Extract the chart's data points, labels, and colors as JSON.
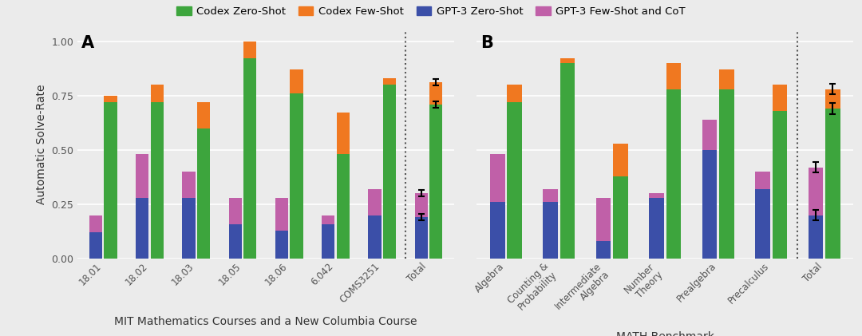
{
  "panel_A": {
    "categories": [
      "18.01",
      "18.02",
      "18.03",
      "18.05",
      "18.06",
      "6.042",
      "COMS3251",
      "Total"
    ],
    "codex_zeroshot": [
      0.72,
      0.72,
      0.6,
      0.92,
      0.76,
      0.48,
      0.8,
      0.71
    ],
    "codex_fewshot": [
      0.75,
      0.8,
      0.72,
      1.0,
      0.87,
      0.67,
      0.83,
      0.81
    ],
    "gpt3_zeroshot": [
      0.12,
      0.28,
      0.28,
      0.16,
      0.13,
      0.16,
      0.2,
      0.19
    ],
    "gpt3_cot": [
      0.2,
      0.48,
      0.4,
      0.28,
      0.28,
      0.2,
      0.32,
      0.3
    ],
    "total_codex_zs_err": [
      0.015,
      0.015
    ],
    "total_codex_fs_err": [
      0.015,
      0.015
    ],
    "total_gpt_zs_err": [
      0.015,
      0.015
    ],
    "total_gpt_cot_err": [
      0.015,
      0.015
    ],
    "xlabel": "MIT Mathematics Courses and a New Columbia Course",
    "panel_label": "A"
  },
  "panel_B": {
    "categories": [
      "Algebra",
      "Counting &\nProbability",
      "Intermediate\nAlgebra",
      "Number\nTheory",
      "Prealgebra",
      "Precalculus",
      "Total"
    ],
    "codex_zeroshot": [
      0.72,
      0.9,
      0.38,
      0.78,
      0.78,
      0.68,
      0.69
    ],
    "codex_fewshot": [
      0.8,
      0.92,
      0.53,
      0.9,
      0.87,
      0.8,
      0.78
    ],
    "gpt3_zeroshot": [
      0.26,
      0.26,
      0.08,
      0.28,
      0.5,
      0.32,
      0.2
    ],
    "gpt3_cot": [
      0.48,
      0.32,
      0.28,
      0.3,
      0.64,
      0.4,
      0.42
    ],
    "total_codex_zs_err": [
      0.025,
      0.025
    ],
    "total_codex_fs_err": [
      0.025,
      0.025
    ],
    "total_gpt_zs_err": [
      0.025,
      0.025
    ],
    "total_gpt_cot_err": [
      0.025,
      0.025
    ],
    "xlabel": "MATH Benchmark",
    "panel_label": "B"
  },
  "colors": {
    "codex_zeroshot": "#3da53d",
    "codex_fewshot": "#f07820",
    "gpt3_zeroshot": "#3b4fa8",
    "gpt3_cot": "#c060a8"
  },
  "legend_labels": [
    "Codex Zero-Shot",
    "Codex Few-Shot",
    "GPT-3 Zero-Shot",
    "GPT-3 Few-Shot and CoT"
  ],
  "ylabel": "Automatic Solve-Rate",
  "ylim": [
    0,
    1.05
  ],
  "background_color": "#ebebeb",
  "grid_color": "#ffffff",
  "sub_bar_width": 0.28,
  "bar_gap": 0.04
}
